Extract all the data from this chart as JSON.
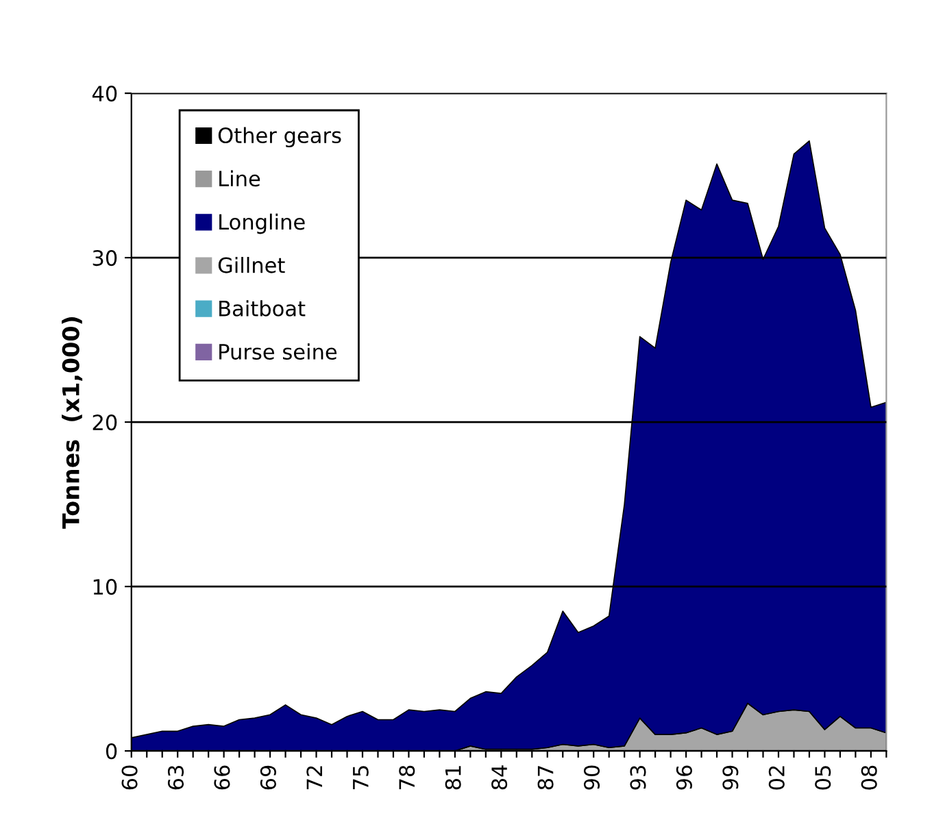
{
  "chart_data": {
    "type": "area",
    "stacked": true,
    "ylabel": "Tonnes  (x1,000)",
    "categories": [
      "60",
      null,
      null,
      "63",
      null,
      null,
      "66",
      null,
      null,
      "69",
      null,
      null,
      "72",
      null,
      null,
      "75",
      null,
      null,
      "78",
      null,
      null,
      "81",
      null,
      null,
      "84",
      null,
      null,
      "87",
      null,
      null,
      "90",
      null,
      null,
      "93",
      null,
      null,
      "96",
      null,
      null,
      "99",
      null,
      null,
      "02",
      null,
      null,
      "05",
      null,
      null,
      "08",
      null
    ],
    "series": [
      {
        "name": "Purse seine",
        "color": "#8064a2",
        "values": [
          null,
          null,
          null,
          null,
          null,
          null,
          null,
          null,
          null,
          null,
          null,
          null,
          null,
          null,
          null,
          null,
          null,
          null,
          null,
          null,
          null,
          null,
          null,
          null,
          null,
          null,
          null,
          null,
          null,
          null,
          null,
          null,
          null,
          null,
          null,
          null,
          null,
          null,
          null,
          null,
          null,
          null,
          null,
          null,
          null,
          null,
          null,
          null,
          null,
          null
        ]
      },
      {
        "name": "Baitboat",
        "color": "#4bacc6",
        "values": [
          null,
          null,
          null,
          null,
          null,
          null,
          null,
          null,
          null,
          null,
          null,
          null,
          null,
          null,
          null,
          null,
          null,
          null,
          null,
          null,
          null,
          null,
          null,
          null,
          null,
          null,
          null,
          null,
          null,
          null,
          null,
          null,
          null,
          null,
          null,
          null,
          null,
          null,
          null,
          null,
          null,
          null,
          null,
          null,
          null,
          null,
          null,
          null,
          null,
          null
        ]
      },
      {
        "name": "Gillnet",
        "color": "#a6a6a6",
        "values": [
          0,
          0,
          0,
          0,
          0,
          0,
          0,
          0,
          0,
          0,
          0,
          0,
          0,
          0,
          0,
          0,
          0,
          0,
          0,
          0,
          0,
          0,
          0.3,
          0.1,
          0.1,
          0.1,
          0.1,
          0.2,
          0.4,
          0.3,
          0.4,
          0.2,
          0.3,
          2.0,
          1.0,
          1.0,
          1.1,
          1.4,
          1.0,
          1.2,
          2.9,
          2.2,
          2.4,
          2.5,
          2.4,
          1.3,
          2.1,
          1.4,
          1.4,
          1.1
        ]
      },
      {
        "name": "Longline",
        "color": "#000080",
        "values": [
          0.8,
          1.0,
          1.2,
          1.2,
          1.5,
          1.6,
          1.5,
          1.9,
          2.0,
          2.2,
          2.8,
          2.2,
          2.0,
          1.6,
          2.1,
          2.4,
          1.9,
          1.9,
          2.5,
          2.4,
          2.5,
          2.4,
          2.9,
          3.5,
          3.4,
          4.4,
          5.1,
          5.8,
          8.1,
          6.9,
          7.2,
          8.0,
          14.7,
          23.2,
          23.5,
          28.7,
          32.4,
          31.5,
          34.7,
          32.3,
          30.4,
          27.7,
          29.5,
          33.8,
          34.7,
          30.5,
          28.1,
          25.4,
          19.5,
          20.1
        ]
      },
      {
        "name": "Line",
        "color": "#999999",
        "values": [
          null,
          null,
          null,
          null,
          null,
          null,
          null,
          null,
          null,
          null,
          null,
          null,
          null,
          null,
          null,
          null,
          null,
          null,
          null,
          null,
          null,
          null,
          null,
          null,
          null,
          null,
          null,
          null,
          null,
          null,
          null,
          null,
          null,
          null,
          null,
          null,
          null,
          null,
          null,
          null,
          null,
          null,
          null,
          null,
          null,
          null,
          null,
          null,
          null,
          null
        ]
      },
      {
        "name": "Other gears",
        "color": "#000000",
        "values": [
          null,
          null,
          null,
          null,
          null,
          null,
          null,
          null,
          null,
          null,
          null,
          null,
          null,
          null,
          null,
          null,
          null,
          null,
          null,
          null,
          null,
          null,
          null,
          null,
          null,
          null,
          null,
          null,
          null,
          null,
          null,
          null,
          null,
          null,
          null,
          null,
          null,
          null,
          null,
          null,
          null,
          null,
          null,
          null,
          null,
          null,
          null,
          null,
          null,
          null
        ]
      }
    ],
    "ylim": [
      0,
      40
    ],
    "yticks": [
      0,
      10,
      20,
      30,
      40
    ],
    "grid": "y",
    "legend": "top left"
  }
}
